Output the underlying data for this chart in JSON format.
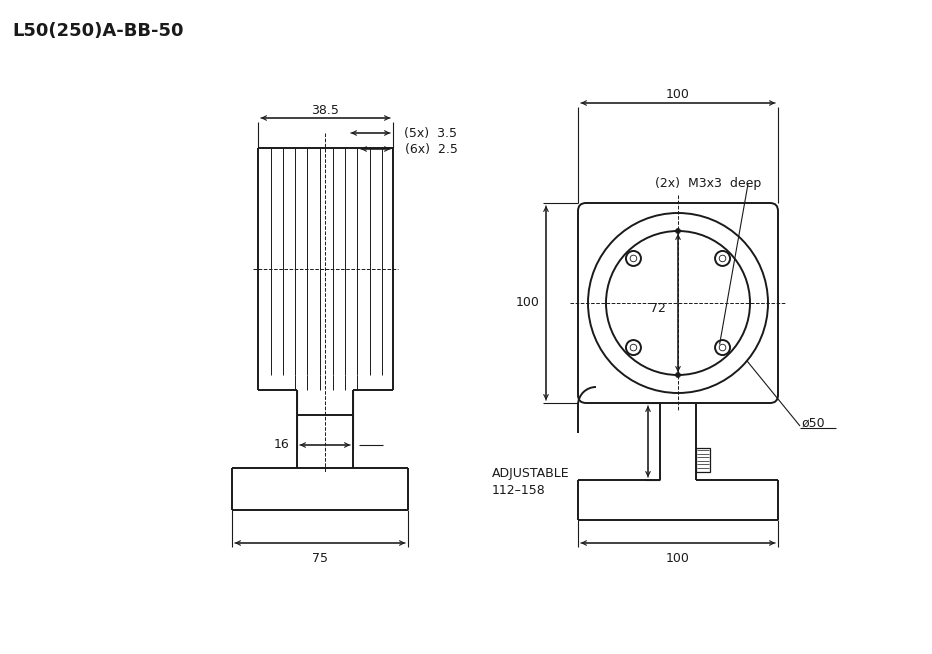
{
  "title": "L50(250)A-BB-50",
  "bg_color": "#ffffff",
  "line_color": "#1a1a1a",
  "annotations": {
    "dim_38_5": "38.5",
    "dim_5x_3_5": "(5x)  3.5",
    "dim_6x_2_5": "(6x)  2.5",
    "dim_100_top": "100",
    "dim_100_h": "100",
    "dim_72": "72",
    "dim_16": "16",
    "dim_adjustable": "ADJUSTABLE",
    "dim_112_158": "112–158",
    "dim_phi50": "ø50",
    "dim_M3x3": "(2x)  M3x3  deep",
    "dim_75": "75",
    "dim_100_bot": "100"
  },
  "figsize": [
    9.32,
    6.54
  ],
  "dpi": 100
}
